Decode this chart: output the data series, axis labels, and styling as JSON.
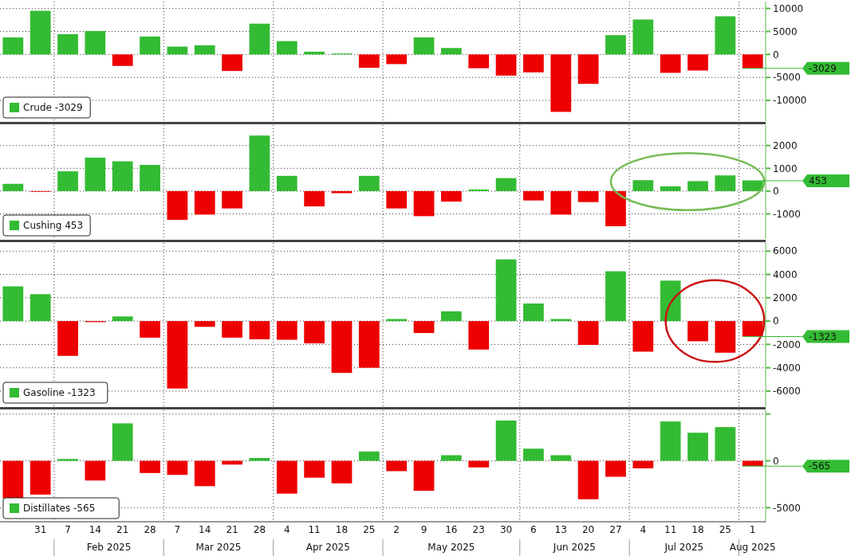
{
  "chart_data": [
    {
      "type": "bar",
      "categories": [
        null,
        "31",
        "7",
        "14",
        "21",
        "28",
        "7",
        "14",
        "21",
        "28",
        "4",
        "11",
        "18",
        "25",
        "2",
        "9",
        "16",
        "23",
        "30",
        "6",
        "13",
        "20",
        "27",
        "4",
        "11",
        "18",
        "25",
        "1"
      ],
      "series": [
        {
          "name": "Crude -3029",
          "color": "#33bb33",
          "values": [
            3700,
            9500,
            4400,
            5100,
            -2500,
            3900,
            1700,
            2000,
            -3600,
            6700,
            2900,
            600,
            200,
            -2900,
            -2100,
            3700,
            1400,
            -3000,
            -4600,
            -3900,
            -12500,
            -6400,
            4200,
            7600,
            -4000,
            -3500,
            8300,
            -3029
          ],
          "colors": [
            "#33bb33",
            "#33bb33",
            "#33bb33",
            "#33bb33",
            "#ee0000",
            "#33bb33",
            "#33bb33",
            "#33bb33",
            "#ee0000",
            "#33bb33",
            "#33bb33",
            "#33bb33",
            "#33bb33",
            "#ee0000",
            "#ee0000",
            "#33bb33",
            "#33bb33",
            "#ee0000",
            "#ee0000",
            "#ee0000",
            "#ee0000",
            "#ee0000",
            "#33bb33",
            "#33bb33",
            "#ee0000",
            "#ee0000",
            "#33bb33",
            "#ee0000"
          ]
        }
      ],
      "ref_lines": [
        {
          "axis": "y",
          "value": -3029,
          "label": "-3029",
          "color": "#33bb33"
        }
      ],
      "ylim": [
        -14500,
        11500
      ],
      "yticks": [
        10000,
        5000,
        0,
        -5000,
        -10000
      ],
      "grid": true,
      "legend": "bottom left",
      "tick_labels": "y"
    },
    {
      "type": "bar",
      "categories": [
        null,
        "31",
        "7",
        "14",
        "21",
        "28",
        "7",
        "14",
        "21",
        "28",
        "4",
        "11",
        "18",
        "25",
        "2",
        "9",
        "16",
        "23",
        "30",
        "6",
        "13",
        "20",
        "27",
        "4",
        "11",
        "18",
        "25",
        "1"
      ],
      "series": [
        {
          "name": "Cushing 453",
          "color": "#33bb33",
          "values": [
            320,
            -30,
            870,
            1470,
            1310,
            1150,
            -1260,
            -1030,
            -760,
            2440,
            670,
            -670,
            -90,
            670,
            -760,
            -1100,
            -460,
            70,
            570,
            -410,
            -1030,
            -480,
            -1540,
            480,
            210,
            440,
            690,
            453
          ],
          "colors": [
            "#33bb33",
            "#ee0000",
            "#33bb33",
            "#33bb33",
            "#33bb33",
            "#33bb33",
            "#ee0000",
            "#ee0000",
            "#ee0000",
            "#33bb33",
            "#33bb33",
            "#ee0000",
            "#ee0000",
            "#33bb33",
            "#ee0000",
            "#ee0000",
            "#ee0000",
            "#33bb33",
            "#33bb33",
            "#ee0000",
            "#ee0000",
            "#ee0000",
            "#ee0000",
            "#33bb33",
            "#33bb33",
            "#33bb33",
            "#33bb33",
            "#33bb33"
          ]
        }
      ],
      "ref_lines": [
        {
          "axis": "y",
          "value": 453,
          "label": "453",
          "color": "#33bb33"
        }
      ],
      "ylim": [
        -2100,
        2900
      ],
      "yticks": [
        2000,
        1000,
        0,
        -1000
      ],
      "grid": true,
      "legend": "bottom left",
      "tick_labels": "y"
    },
    {
      "type": "bar",
      "categories": [
        null,
        "31",
        "7",
        "14",
        "21",
        "28",
        "7",
        "14",
        "21",
        "28",
        "4",
        "11",
        "18",
        "25",
        "2",
        "9",
        "16",
        "23",
        "30",
        "6",
        "13",
        "20",
        "27",
        "4",
        "11",
        "18",
        "25",
        "1"
      ],
      "series": [
        {
          "name": "Gasoline -1323",
          "color": "#33bb33",
          "values": [
            2980,
            2310,
            -2980,
            -90,
            400,
            -1420,
            -5780,
            -490,
            -1420,
            -1560,
            -1600,
            -1910,
            -4440,
            -4000,
            180,
            -1020,
            840,
            -2440,
            5290,
            1510,
            180,
            -2040,
            4270,
            -2620,
            3470,
            -1730,
            -2710,
            -1323
          ],
          "colors": [
            "#33bb33",
            "#33bb33",
            "#ee0000",
            "#ee0000",
            "#33bb33",
            "#ee0000",
            "#ee0000",
            "#ee0000",
            "#ee0000",
            "#ee0000",
            "#ee0000",
            "#ee0000",
            "#ee0000",
            "#ee0000",
            "#33bb33",
            "#ee0000",
            "#33bb33",
            "#ee0000",
            "#33bb33",
            "#33bb33",
            "#33bb33",
            "#ee0000",
            "#33bb33",
            "#ee0000",
            "#33bb33",
            "#ee0000",
            "#ee0000",
            "#ee0000"
          ]
        }
      ],
      "ref_lines": [
        {
          "axis": "y",
          "value": -1323,
          "label": "-1323",
          "color": "#33bb33"
        }
      ],
      "ylim": [
        -7300,
        6700
      ],
      "yticks": [
        6000,
        4000,
        2000,
        0,
        -2000,
        -4000,
        -6000
      ],
      "grid": true,
      "legend": "bottom left",
      "tick_labels": "y"
    },
    {
      "type": "bar",
      "categories": [
        null,
        "31",
        "7",
        "14",
        "21",
        "28",
        "7",
        "14",
        "21",
        "28",
        "4",
        "11",
        "18",
        "25",
        "2",
        "9",
        "16",
        "23",
        "30",
        "6",
        "13",
        "20",
        "27",
        "4",
        "11",
        "18",
        "25",
        "1"
      ],
      "series": [
        {
          "name": "Distillates -565",
          "color": "#33bb33",
          "values": [
            -4000,
            -3600,
            200,
            -2100,
            4000,
            -1300,
            -1500,
            -2700,
            -400,
            300,
            -3500,
            -1800,
            -2400,
            1000,
            -1100,
            -3200,
            600,
            -700,
            4300,
            1300,
            600,
            -4100,
            -1700,
            -800,
            4200,
            3000,
            3600,
            -565
          ],
          "colors": [
            "#ee0000",
            "#ee0000",
            "#33bb33",
            "#ee0000",
            "#33bb33",
            "#ee0000",
            "#ee0000",
            "#ee0000",
            "#ee0000",
            "#33bb33",
            "#ee0000",
            "#ee0000",
            "#ee0000",
            "#33bb33",
            "#ee0000",
            "#ee0000",
            "#33bb33",
            "#ee0000",
            "#33bb33",
            "#33bb33",
            "#33bb33",
            "#ee0000",
            "#ee0000",
            "#ee0000",
            "#33bb33",
            "#33bb33",
            "#33bb33",
            "#ee0000"
          ]
        }
      ],
      "ref_lines": [
        {
          "axis": "y",
          "value": -565,
          "label": "-565",
          "color": "#33bb33"
        }
      ],
      "ylim": [
        -6500,
        5400
      ],
      "yticks": [
        {
          "value": 5000,
          "label": null
        },
        0,
        -5000
      ],
      "grid": true,
      "legend": "bottom left",
      "annotations": [
        "Feb 2025",
        "Mar 2025",
        "Apr 2025",
        "May 2025",
        "Jun 2025",
        "Jul 2025",
        "Aug 2025"
      ]
    }
  ]
}
